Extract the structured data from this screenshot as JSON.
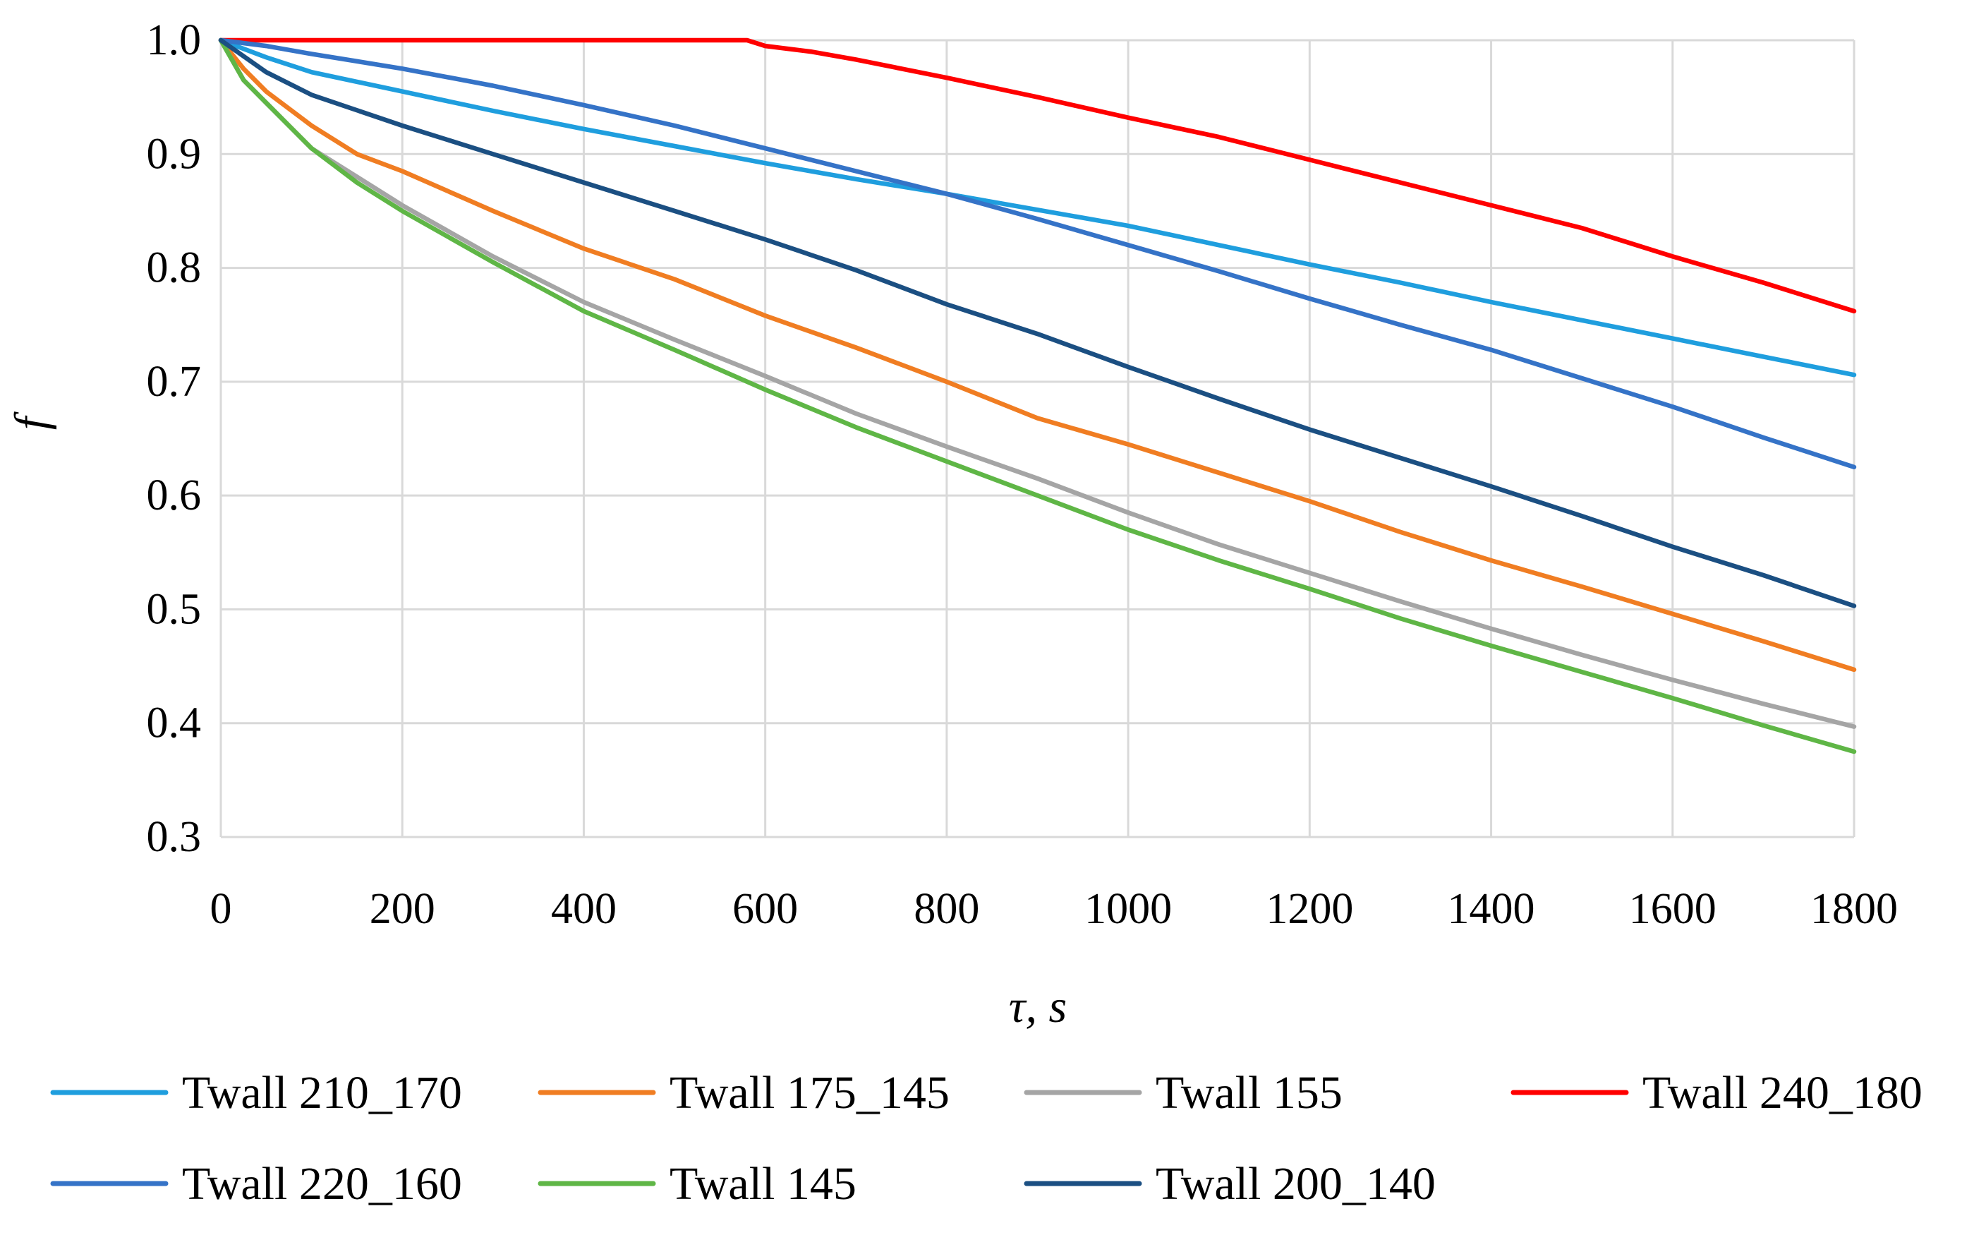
{
  "chart_data": {
    "type": "line",
    "title": "",
    "xlabel": "τ, s",
    "ylabel": "f",
    "xlim": [
      0,
      1800
    ],
    "ylim": [
      0.3,
      1.0
    ],
    "grid": true,
    "legend_position": "bottom",
    "x_ticks": [
      "0",
      "200",
      "400",
      "600",
      "800",
      "1000",
      "1200",
      "1400",
      "1600",
      "1800"
    ],
    "y_ticks": [
      "0.3",
      "0.4",
      "0.5",
      "0.6",
      "0.7",
      "0.8",
      "0.9",
      "1.0"
    ],
    "series": [
      {
        "name": "Twall 210_170",
        "color": "#1f9ede",
        "x": [
          0,
          50,
          100,
          200,
          300,
          400,
          500,
          600,
          700,
          800,
          900,
          1000,
          1100,
          1200,
          1300,
          1400,
          1500,
          1600,
          1700,
          1800
        ],
        "y": [
          1.0,
          0.985,
          0.972,
          0.955,
          0.938,
          0.922,
          0.907,
          0.892,
          0.878,
          0.865,
          0.851,
          0.837,
          0.82,
          0.803,
          0.787,
          0.77,
          0.754,
          0.738,
          0.722,
          0.706
        ]
      },
      {
        "name": "Twall 175_145",
        "color": "#f07d22",
        "x": [
          0,
          25,
          50,
          100,
          150,
          200,
          300,
          400,
          500,
          600,
          700,
          800,
          900,
          1000,
          1100,
          1200,
          1300,
          1400,
          1500,
          1600,
          1700,
          1800
        ],
        "y": [
          1.0,
          0.975,
          0.955,
          0.925,
          0.9,
          0.885,
          0.85,
          0.817,
          0.79,
          0.758,
          0.73,
          0.7,
          0.668,
          0.645,
          0.62,
          0.595,
          0.568,
          0.543,
          0.52,
          0.496,
          0.472,
          0.447
        ]
      },
      {
        "name": "Twall 155",
        "color": "#a5a5a5",
        "x": [
          0,
          25,
          50,
          75,
          100,
          150,
          200,
          300,
          400,
          500,
          600,
          700,
          800,
          900,
          1000,
          1100,
          1200,
          1300,
          1400,
          1500,
          1600,
          1700,
          1800
        ],
        "y": [
          1.0,
          0.965,
          0.945,
          0.925,
          0.905,
          0.88,
          0.855,
          0.81,
          0.77,
          0.737,
          0.705,
          0.672,
          0.643,
          0.615,
          0.585,
          0.557,
          0.532,
          0.507,
          0.483,
          0.46,
          0.438,
          0.417,
          0.397
        ]
      },
      {
        "name": "Twall 240_180",
        "color": "#ff0000",
        "x": [
          0,
          580,
          600,
          650,
          700,
          800,
          900,
          1000,
          1100,
          1200,
          1300,
          1400,
          1500,
          1600,
          1700,
          1800
        ],
        "y": [
          1.0,
          1.0,
          0.995,
          0.99,
          0.983,
          0.967,
          0.95,
          0.932,
          0.915,
          0.895,
          0.875,
          0.855,
          0.835,
          0.81,
          0.787,
          0.762
        ]
      },
      {
        "name": "Twall 220_160",
        "color": "#3573c7",
        "x": [
          0,
          50,
          100,
          200,
          300,
          400,
          500,
          600,
          700,
          800,
          900,
          1000,
          1100,
          1200,
          1300,
          1400,
          1500,
          1600,
          1700,
          1800
        ],
        "y": [
          1.0,
          0.995,
          0.988,
          0.975,
          0.96,
          0.943,
          0.925,
          0.905,
          0.885,
          0.865,
          0.843,
          0.82,
          0.797,
          0.773,
          0.75,
          0.728,
          0.703,
          0.678,
          0.651,
          0.625
        ]
      },
      {
        "name": "Twall 145",
        "color": "#5fb646",
        "x": [
          0,
          25,
          50,
          75,
          100,
          150,
          200,
          300,
          400,
          500,
          600,
          700,
          800,
          900,
          1000,
          1100,
          1200,
          1300,
          1400,
          1500,
          1600,
          1700,
          1800
        ],
        "y": [
          1.0,
          0.965,
          0.945,
          0.925,
          0.905,
          0.875,
          0.85,
          0.805,
          0.762,
          0.728,
          0.693,
          0.66,
          0.63,
          0.6,
          0.57,
          0.543,
          0.518,
          0.492,
          0.468,
          0.445,
          0.422,
          0.398,
          0.375
        ]
      },
      {
        "name": "Twall 200_140",
        "color": "#1b4f82",
        "x": [
          0,
          50,
          100,
          200,
          300,
          400,
          500,
          600,
          700,
          800,
          900,
          1000,
          1100,
          1200,
          1300,
          1400,
          1500,
          1600,
          1700,
          1800
        ],
        "y": [
          1.0,
          0.972,
          0.952,
          0.925,
          0.9,
          0.875,
          0.85,
          0.825,
          0.798,
          0.768,
          0.742,
          0.713,
          0.685,
          0.658,
          0.633,
          0.608,
          0.582,
          0.555,
          0.53,
          0.503
        ]
      }
    ]
  }
}
